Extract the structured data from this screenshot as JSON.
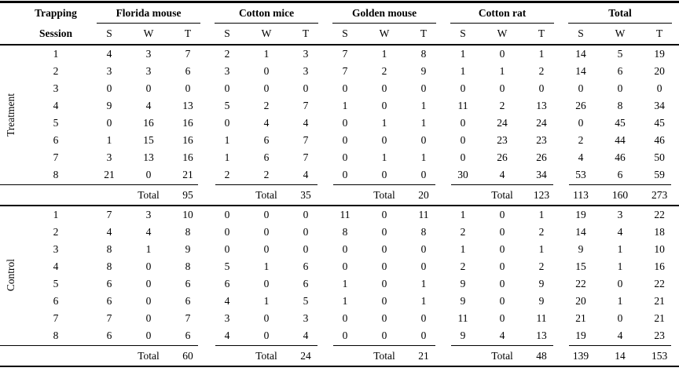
{
  "table": {
    "corner_header": {
      "line1": "Trapping",
      "line2": "Session"
    },
    "col_groups": [
      {
        "label": "Florida mouse"
      },
      {
        "label": "Cotton mice"
      },
      {
        "label": "Golden mouse"
      },
      {
        "label": "Cotton rat"
      },
      {
        "label": "Total"
      }
    ],
    "sub_headers": [
      "S",
      "W",
      "T"
    ],
    "total_label": "Total",
    "sections": [
      {
        "name": "Treatment",
        "rows": [
          {
            "session": "1",
            "values": [
              "4",
              "3",
              "7",
              "2",
              "1",
              "3",
              "7",
              "1",
              "8",
              "1",
              "0",
              "1",
              "14",
              "5",
              "19"
            ]
          },
          {
            "session": "2",
            "values": [
              "3",
              "3",
              "6",
              "3",
              "0",
              "3",
              "7",
              "2",
              "9",
              "1",
              "1",
              "2",
              "14",
              "6",
              "20"
            ]
          },
          {
            "session": "3",
            "values": [
              "0",
              "0",
              "0",
              "0",
              "0",
              "0",
              "0",
              "0",
              "0",
              "0",
              "0",
              "0",
              "0",
              "0",
              "0"
            ]
          },
          {
            "session": "4",
            "values": [
              "9",
              "4",
              "13",
              "5",
              "2",
              "7",
              "1",
              "0",
              "1",
              "11",
              "2",
              "13",
              "26",
              "8",
              "34"
            ]
          },
          {
            "session": "5",
            "values": [
              "0",
              "16",
              "16",
              "0",
              "4",
              "4",
              "0",
              "1",
              "1",
              "0",
              "24",
              "24",
              "0",
              "45",
              "45"
            ]
          },
          {
            "session": "6",
            "values": [
              "1",
              "15",
              "16",
              "1",
              "6",
              "7",
              "0",
              "0",
              "0",
              "0",
              "23",
              "23",
              "2",
              "44",
              "46"
            ]
          },
          {
            "session": "7",
            "values": [
              "3",
              "13",
              "16",
              "1",
              "6",
              "7",
              "0",
              "1",
              "1",
              "0",
              "26",
              "26",
              "4",
              "46",
              "50"
            ]
          },
          {
            "session": "8",
            "values": [
              "21",
              "0",
              "21",
              "2",
              "2",
              "4",
              "0",
              "0",
              "0",
              "30",
              "4",
              "34",
              "53",
              "6",
              "59"
            ]
          }
        ],
        "group_totals": [
          "95",
          "35",
          "20",
          "123"
        ],
        "grand_totals": [
          "113",
          "160",
          "273"
        ]
      },
      {
        "name": "Control",
        "rows": [
          {
            "session": "1",
            "values": [
              "7",
              "3",
              "10",
              "0",
              "0",
              "0",
              "11",
              "0",
              "11",
              "1",
              "0",
              "1",
              "19",
              "3",
              "22"
            ]
          },
          {
            "session": "2",
            "values": [
              "4",
              "4",
              "8",
              "0",
              "0",
              "0",
              "8",
              "0",
              "8",
              "2",
              "0",
              "2",
              "14",
              "4",
              "18"
            ]
          },
          {
            "session": "3",
            "values": [
              "8",
              "1",
              "9",
              "0",
              "0",
              "0",
              "0",
              "0",
              "0",
              "1",
              "0",
              "1",
              "9",
              "1",
              "10"
            ]
          },
          {
            "session": "4",
            "values": [
              "8",
              "0",
              "8",
              "5",
              "1",
              "6",
              "0",
              "0",
              "0",
              "2",
              "0",
              "2",
              "15",
              "1",
              "16"
            ]
          },
          {
            "session": "5",
            "values": [
              "6",
              "0",
              "6",
              "6",
              "0",
              "6",
              "1",
              "0",
              "1",
              "9",
              "0",
              "9",
              "22",
              "0",
              "22"
            ]
          },
          {
            "session": "6",
            "values": [
              "6",
              "0",
              "6",
              "4",
              "1",
              "5",
              "1",
              "0",
              "1",
              "9",
              "0",
              "9",
              "20",
              "1",
              "21"
            ]
          },
          {
            "session": "7",
            "values": [
              "7",
              "0",
              "7",
              "3",
              "0",
              "3",
              "0",
              "0",
              "0",
              "11",
              "0",
              "11",
              "21",
              "0",
              "21"
            ]
          },
          {
            "session": "8",
            "values": [
              "6",
              "0",
              "6",
              "4",
              "0",
              "4",
              "0",
              "0",
              "0",
              "9",
              "4",
              "13",
              "19",
              "4",
              "23"
            ]
          }
        ],
        "group_totals": [
          "60",
          "24",
          "21",
          "48"
        ],
        "grand_totals": [
          "139",
          "14",
          "153"
        ]
      }
    ]
  }
}
